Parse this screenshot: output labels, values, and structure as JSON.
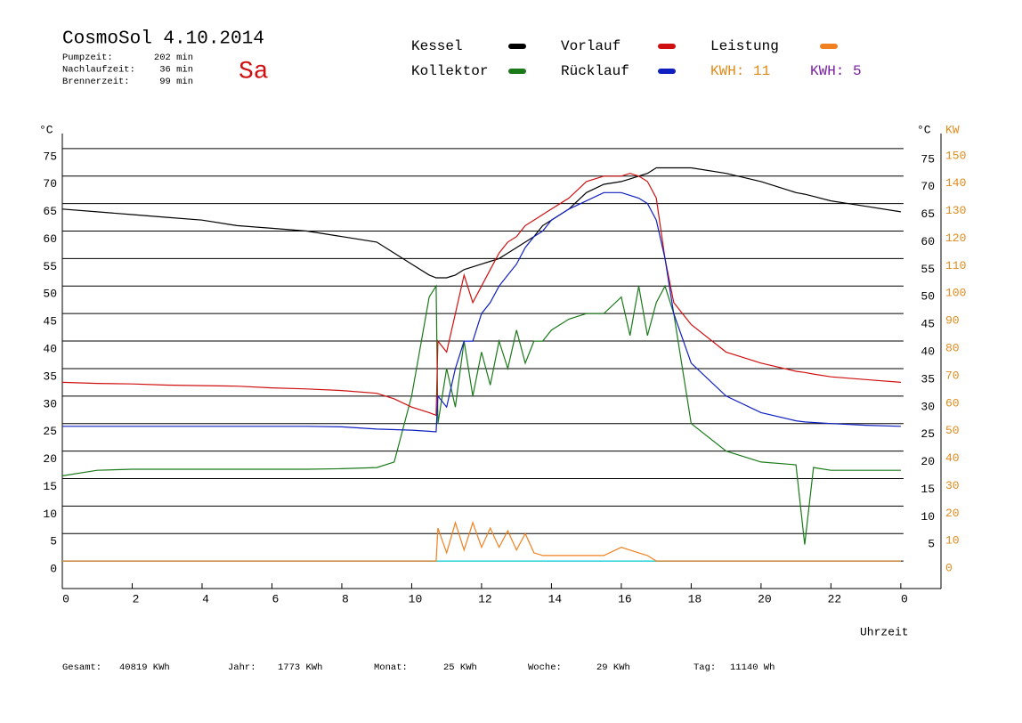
{
  "chart_data": {
    "type": "line",
    "title": "CosmoSol 4.10.2014",
    "day": "Sa",
    "info": [
      {
        "label": "Pumpzeit:",
        "value": "202 min"
      },
      {
        "label": "Nachlaufzeit:",
        "value": "36 min"
      },
      {
        "label": "Brennerzeit:",
        "value": "99 min"
      }
    ],
    "y_label": "°C",
    "y_label_right": "°C",
    "y2_label": "KW",
    "x_label": "Uhrzeit",
    "kwh_labels": [
      {
        "text": "KWH: 11",
        "color": "#e08a1a"
      },
      {
        "text": "KWH: 5",
        "color": "#7b1fa2"
      }
    ],
    "totals": [
      {
        "label": "Gesamt:",
        "value": "40819 KWh"
      },
      {
        "label": "Jahr:",
        "value": "1773 KWh"
      },
      {
        "label": "Monat:",
        "value": "25 KWh"
      },
      {
        "label": "Woche:",
        "value": "29 KWh"
      },
      {
        "label": "Tag:",
        "value": "11140 Wh"
      }
    ],
    "xlim": [
      0,
      25.15
    ],
    "xticks": [
      0,
      2,
      4,
      6,
      8,
      10,
      12,
      14,
      16,
      18,
      20,
      22,
      {
        "value": 24,
        "label": "0"
      }
    ],
    "ylim": [
      -5,
      80
    ],
    "yticks": [
      0,
      5,
      10,
      15,
      20,
      25,
      30,
      35,
      40,
      45,
      50,
      55,
      60,
      65,
      70,
      75
    ],
    "yticks_right": [
      5,
      10,
      15,
      20,
      25,
      30,
      35,
      40,
      45,
      50,
      55,
      60,
      65,
      70,
      75
    ],
    "y2lim": [
      -10,
      160
    ],
    "y2ticks": [
      0,
      10,
      20,
      30,
      40,
      50,
      60,
      70,
      80,
      90,
      100,
      110,
      120,
      130,
      140,
      150
    ],
    "grid": true,
    "x": [
      0,
      1,
      2,
      3,
      4,
      5,
      6,
      7,
      8,
      9,
      9.5,
      10,
      10.5,
      10.7,
      10.75,
      11,
      11.25,
      11.5,
      11.75,
      12,
      12.25,
      12.5,
      12.75,
      13,
      13.25,
      13.5,
      13.75,
      14,
      14.5,
      15,
      15.5,
      16,
      16.25,
      16.5,
      16.75,
      17,
      17.25,
      17.5,
      18,
      19,
      20,
      21,
      21.25,
      21.5,
      22,
      23,
      24
    ],
    "series": [
      {
        "name": "Kessel",
        "color": "#000000",
        "values": [
          64,
          63.5,
          63,
          62.5,
          62,
          61,
          60.5,
          60,
          59,
          58,
          56,
          54,
          52,
          51.5,
          51.5,
          51.5,
          52,
          53,
          53.5,
          54,
          54.5,
          55,
          56,
          57,
          58,
          59,
          61,
          62,
          64,
          67,
          68.5,
          69,
          69.5,
          70,
          70.5,
          71.5,
          71.5,
          71.5,
          71.5,
          70.5,
          69,
          67,
          66.7,
          66.3,
          65.5,
          64.5,
          63.5
        ]
      },
      {
        "name": "Vorlauf",
        "color": "#d01010",
        "values": [
          32.5,
          32.3,
          32.2,
          32,
          31.9,
          31.8,
          31.5,
          31.3,
          31,
          30.5,
          29.5,
          28,
          27,
          26.5,
          40,
          38,
          45,
          52,
          47,
          50,
          53,
          56,
          58,
          59,
          61,
          62,
          63,
          64,
          66,
          69,
          70,
          70,
          70.5,
          70,
          69,
          66,
          55,
          47,
          43,
          38,
          36,
          34.5,
          34.3,
          34,
          33.5,
          33,
          32.5
        ]
      },
      {
        "name": "Leistung",
        "color": "#f08020",
        "axis": "y2",
        "values": [
          0,
          0,
          0,
          0,
          0,
          0,
          0,
          0,
          0,
          0,
          0,
          0,
          0,
          0,
          12,
          3,
          14,
          4,
          14,
          5,
          12,
          5,
          11,
          4,
          10,
          3,
          2,
          2,
          2,
          2,
          2,
          5,
          4,
          3,
          2,
          0,
          0,
          0,
          0,
          0,
          0,
          0,
          0,
          0,
          0,
          0,
          0
        ]
      },
      {
        "name": "Kollektor",
        "color": "#1a7a1a",
        "values": [
          15.5,
          16.5,
          16.7,
          16.7,
          16.7,
          16.7,
          16.7,
          16.7,
          16.8,
          17,
          18,
          30,
          48,
          50,
          25,
          35,
          28,
          40,
          30,
          38,
          32,
          40,
          35,
          42,
          36,
          40,
          40,
          42,
          44,
          45,
          45,
          48,
          41,
          50,
          41,
          47,
          50,
          45,
          25,
          20,
          18,
          17.5,
          3,
          17,
          16.5,
          16.5,
          16.5
        ]
      },
      {
        "name": "Rücklauf",
        "color": "#1020c0",
        "values": [
          24.5,
          24.5,
          24.5,
          24.5,
          24.5,
          24.5,
          24.5,
          24.5,
          24.4,
          24,
          23.9,
          23.8,
          23.6,
          23.5,
          30,
          28,
          35,
          40,
          40,
          45,
          47,
          50,
          52,
          54,
          57,
          59,
          60,
          62,
          64,
          65.5,
          67,
          67,
          66.5,
          66,
          65,
          62,
          55,
          45,
          36,
          30,
          27,
          25.5,
          25.3,
          25.2,
          25,
          24.7,
          24.5
        ]
      }
    ]
  }
}
